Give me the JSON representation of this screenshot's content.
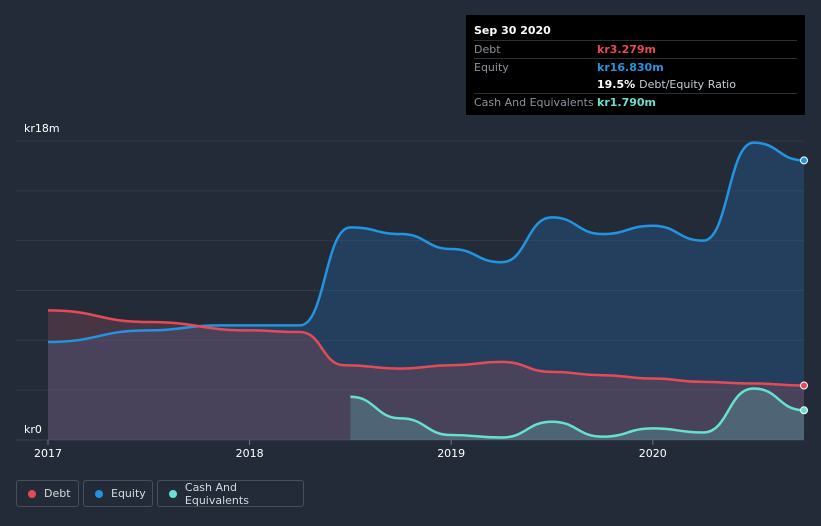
{
  "tooltip": {
    "date": "Sep 30 2020",
    "debt_label": "Debt",
    "debt_value": "kr3.279m",
    "equity_label": "Equity",
    "equity_value": "kr16.830m",
    "ratio_value": "19.5%",
    "ratio_label": "Debt/Equity Ratio",
    "cash_label": "Cash And Equivalents",
    "cash_value": "kr1.790m"
  },
  "legend": {
    "debt": "Debt",
    "equity": "Equity",
    "cash": "Cash And Equivalents"
  },
  "colors": {
    "debt": "#e64a57",
    "equity": "#2394df",
    "cash": "#68e0cf",
    "background": "#232b39"
  },
  "chart_data": {
    "type": "area",
    "y_top_label": "kr18m",
    "y_bottom_label": "kr0",
    "ylim": [
      0,
      18
    ],
    "xlim": [
      2017.0,
      2020.75
    ],
    "x_ticks": [
      "2017",
      "2018",
      "2019",
      "2020"
    ],
    "grid": true,
    "legend_position": "bottom-left",
    "series": [
      {
        "name": "Equity",
        "x": [
          2017.0,
          2017.5,
          2017.85,
          2018.25,
          2018.5,
          2018.75,
          2019.0,
          2019.25,
          2019.5,
          2019.75,
          2020.0,
          2020.25,
          2020.5,
          2020.75
        ],
        "y": [
          5.9,
          6.6,
          6.9,
          6.9,
          12.8,
          12.4,
          11.5,
          10.7,
          13.4,
          12.4,
          12.9,
          12.0,
          17.9,
          16.83
        ]
      },
      {
        "name": "Debt",
        "x": [
          2017.0,
          2017.5,
          2018.0,
          2018.25,
          2018.47,
          2018.75,
          2019.0,
          2019.25,
          2019.5,
          2019.75,
          2020.0,
          2020.25,
          2020.5,
          2020.75
        ],
        "y": [
          7.8,
          7.1,
          6.6,
          6.5,
          4.5,
          4.3,
          4.5,
          4.7,
          4.1,
          3.9,
          3.7,
          3.5,
          3.4,
          3.279
        ]
      },
      {
        "name": "Cash And Equivalents",
        "x": [
          2018.5,
          2018.75,
          2019.0,
          2019.25,
          2019.5,
          2019.75,
          2020.0,
          2020.25,
          2020.5,
          2020.75
        ],
        "y": [
          2.6,
          1.3,
          0.3,
          0.15,
          1.1,
          0.2,
          0.7,
          0.45,
          3.1,
          1.79
        ]
      }
    ]
  }
}
